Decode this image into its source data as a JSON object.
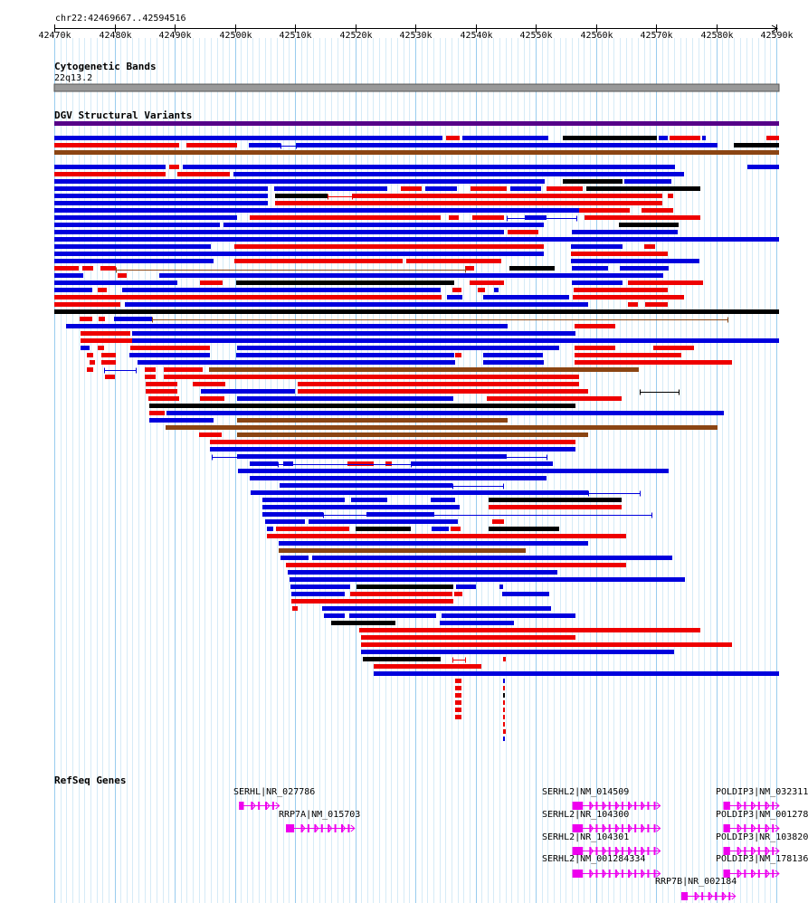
{
  "view": {
    "locus": "chr22:42469667..42594516",
    "start": 42469667,
    "end": 42594516,
    "ticks": [
      "42470k",
      "42480k",
      "42490k",
      "42500k",
      "42510k",
      "42520k",
      "42530k",
      "42540k",
      "42550k",
      "42560k",
      "42570k",
      "42580k",
      "42590k"
    ],
    "tick_values": [
      42470000,
      42480000,
      42490000,
      42500000,
      42510000,
      42520000,
      42530000,
      42540000,
      42550000,
      42560000,
      42570000,
      42580000,
      42590000
    ]
  },
  "colors": {
    "grid_major": "#99ccee",
    "grid_minor": "#d6ebf7",
    "loss": "#0000dd",
    "gain": "#ee0000",
    "inversion": "#000000",
    "complex": "#8b4513",
    "otherpurple": "#550088",
    "gene": "#ee00ee",
    "band": "#999999"
  },
  "tracks": {
    "cytoband": {
      "title": "Cytogenetic Bands",
      "band_label": "22q13.2"
    },
    "dgv": {
      "title": "DGV Structural Variants"
    },
    "refseq": {
      "title": "RefSeq Genes",
      "genes": [
        {
          "label": "SERHL|NR_027786",
          "start": 42500700,
          "end": 42507400
        },
        {
          "label": "RRP7A|NM_015703",
          "start": 42508500,
          "end": 42519900
        },
        {
          "label": "SERHL2|NM_014509",
          "start": 42556100,
          "end": 42570700
        },
        {
          "label": "SERHL2|NR_104300",
          "start": 42556100,
          "end": 42570700
        },
        {
          "label": "SERHL2|NR_104301",
          "start": 42556100,
          "end": 42570700
        },
        {
          "label": "SERHL2|NM_001284334",
          "start": 42556100,
          "end": 42570700
        },
        {
          "label": "RRP7B|NR_002184",
          "start": 42574200,
          "end": 42583200
        },
        {
          "label": "POLDIP3|NM_032311",
          "start": 42581200,
          "end": 42594516
        },
        {
          "label": "POLDIP3|NM_001278",
          "start": 42581200,
          "end": 42594516
        },
        {
          "label": "POLDIP3|NR_103820",
          "start": 42581200,
          "end": 42594516
        },
        {
          "label": "POLDIP3|NM_178136",
          "start": 42581200,
          "end": 42594516
        }
      ]
    }
  }
}
